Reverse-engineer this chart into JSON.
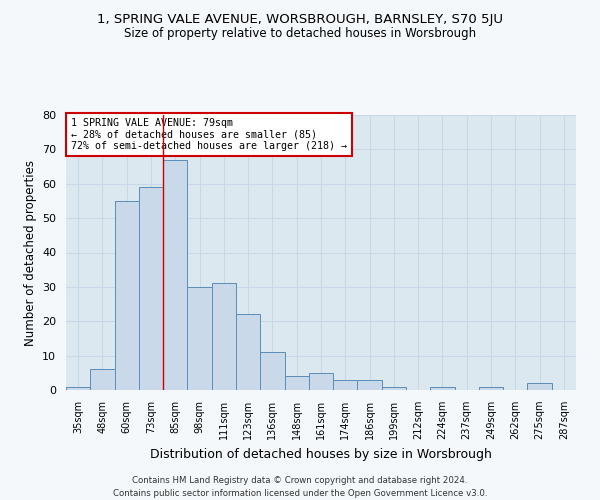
{
  "title_line1": "1, SPRING VALE AVENUE, WORSBROUGH, BARNSLEY, S70 5JU",
  "title_line2": "Size of property relative to detached houses in Worsbrough",
  "xlabel": "Distribution of detached houses by size in Worsbrough",
  "ylabel": "Number of detached properties",
  "categories": [
    "35sqm",
    "48sqm",
    "60sqm",
    "73sqm",
    "85sqm",
    "98sqm",
    "111sqm",
    "123sqm",
    "136sqm",
    "148sqm",
    "161sqm",
    "174sqm",
    "186sqm",
    "199sqm",
    "212sqm",
    "224sqm",
    "237sqm",
    "249sqm",
    "262sqm",
    "275sqm",
    "287sqm"
  ],
  "values": [
    1,
    6,
    55,
    59,
    67,
    30,
    31,
    22,
    11,
    4,
    5,
    3,
    3,
    1,
    0,
    1,
    0,
    1,
    0,
    2,
    0
  ],
  "bar_color": "#c9d9ea",
  "bar_edge_color": "#5b8db8",
  "property_label": "1 SPRING VALE AVENUE: 79sqm",
  "annotation_line1": "← 28% of detached houses are smaller (85)",
  "annotation_line2": "72% of semi-detached houses are larger (218) →",
  "vline_color": "#cc0000",
  "vline_position": 3.5,
  "annotation_box_color": "#ffffff",
  "annotation_box_edge": "#cc0000",
  "ylim": [
    0,
    80
  ],
  "yticks": [
    0,
    10,
    20,
    30,
    40,
    50,
    60,
    70,
    80
  ],
  "grid_color": "#c8d8e8",
  "plot_bg_color": "#dce8f0",
  "fig_bg_color": "#f5f8fa",
  "footer_line1": "Contains HM Land Registry data © Crown copyright and database right 2024.",
  "footer_line2": "Contains public sector information licensed under the Open Government Licence v3.0."
}
